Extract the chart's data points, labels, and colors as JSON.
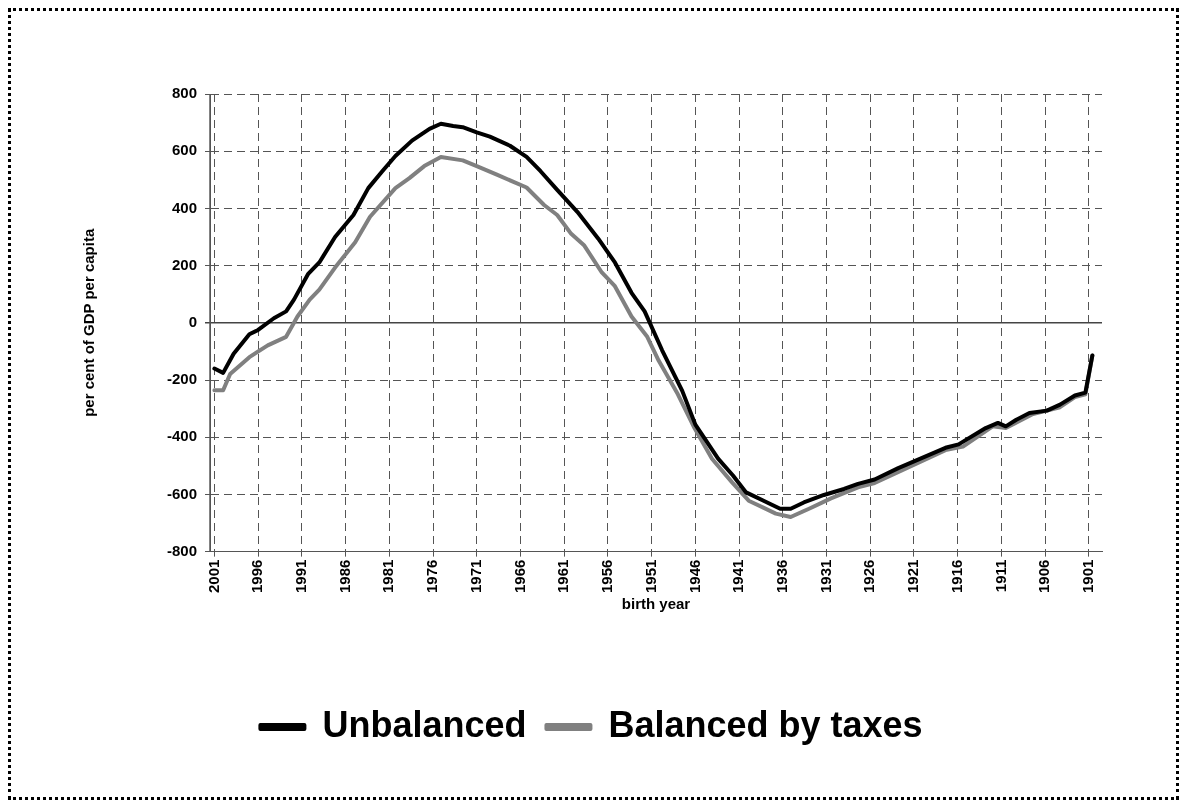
{
  "chart_data": {
    "type": "line",
    "xlabel": "birth year",
    "ylabel": "per cent of GDP per capita",
    "xlim": [
      2001.5,
      1899.5
    ],
    "xticks": [
      2001,
      1996,
      1991,
      1986,
      1981,
      1976,
      1971,
      1966,
      1961,
      1956,
      1951,
      1946,
      1941,
      1936,
      1931,
      1926,
      1921,
      1916,
      1911,
      1906,
      1901
    ],
    "ylim": [
      -800,
      800
    ],
    "yticks": [
      -800,
      -600,
      -400,
      -200,
      0,
      200,
      400,
      600,
      800
    ],
    "grid": true,
    "legend": "bottom",
    "marker": "none",
    "line_style": "solid",
    "series": [
      {
        "name": "Unbalanced",
        "color": "#000000",
        "x": [
          2001,
          2000,
          1998.8,
          1997,
          1996,
          1994.2,
          1992.8,
          1991.9,
          1990.3,
          1989,
          1987.2,
          1985.1,
          1983.4,
          1981.8,
          1980.3,
          1978.4,
          1976.4,
          1975.1,
          1973.7,
          1972.6,
          1971,
          1969.5,
          1967.2,
          1965.3,
          1963.7,
          1961.8,
          1959.5,
          1957.1,
          1955.2,
          1953.3,
          1951.8,
          1949.8,
          1947.5,
          1946,
          1943.4,
          1941.7,
          1940.2,
          1938.2,
          1936.3,
          1935.1,
          1933.6,
          1931.3,
          1929,
          1927.4,
          1925.5,
          1922.8,
          1919.8,
          1917.4,
          1915.9,
          1912.8,
          1911.4,
          1910.5,
          1909.3,
          1907.8,
          1905.8,
          1904.3,
          1902.6,
          1901.4,
          1900.6
        ],
        "values": [
          -160,
          -175,
          -108,
          -40,
          -25,
          16,
          40,
          81,
          170,
          211,
          300,
          377,
          471,
          530,
          583,
          637,
          678,
          696,
          688,
          684,
          666,
          651,
          619,
          580,
          530,
          465,
          388,
          294,
          211,
          105,
          40,
          -96,
          -238,
          -356,
          -475,
          -534,
          -593,
          -622,
          -650,
          -650,
          -628,
          -602,
          -581,
          -563,
          -548,
          -508,
          -469,
          -437,
          -425,
          -368,
          -350,
          -362,
          -339,
          -315,
          -307,
          -286,
          -254,
          -244,
          -114
        ]
      },
      {
        "name": "Balanced by taxes",
        "color": "#808080",
        "x": [
          2001,
          2000,
          1999.2,
          1997,
          1994.9,
          1992.8,
          1991.5,
          1990.1,
          1989,
          1987.2,
          1984.9,
          1983.2,
          1980.3,
          1978.7,
          1977,
          1975.1,
          1972.6,
          1971,
          1968.7,
          1965.3,
          1963.3,
          1961.8,
          1960.2,
          1958.7,
          1956.7,
          1955.2,
          1953.3,
          1951.5,
          1950.2,
          1948,
          1946.1,
          1944.1,
          1941.8,
          1939.9,
          1936.8,
          1935.1,
          1933,
          1930.5,
          1927.4,
          1925.5,
          1922.4,
          1917.4,
          1915.4,
          1912,
          1910.5,
          1907.4,
          1904.3,
          1902.6,
          1901.4,
          1900.6
        ],
        "values": [
          -236,
          -236,
          -179,
          -120,
          -79,
          -49,
          22,
          81,
          116,
          193,
          282,
          371,
          471,
          506,
          548,
          580,
          568,
          548,
          518,
          473,
          412,
          377,
          311,
          270,
          176,
          128,
          22,
          -49,
          -132,
          -250,
          -368,
          -475,
          -558,
          -622,
          -667,
          -679,
          -650,
          -614,
          -575,
          -560,
          -516,
          -445,
          -433,
          -362,
          -368,
          -319,
          -295,
          -260,
          -250,
          -114
        ]
      }
    ]
  }
}
